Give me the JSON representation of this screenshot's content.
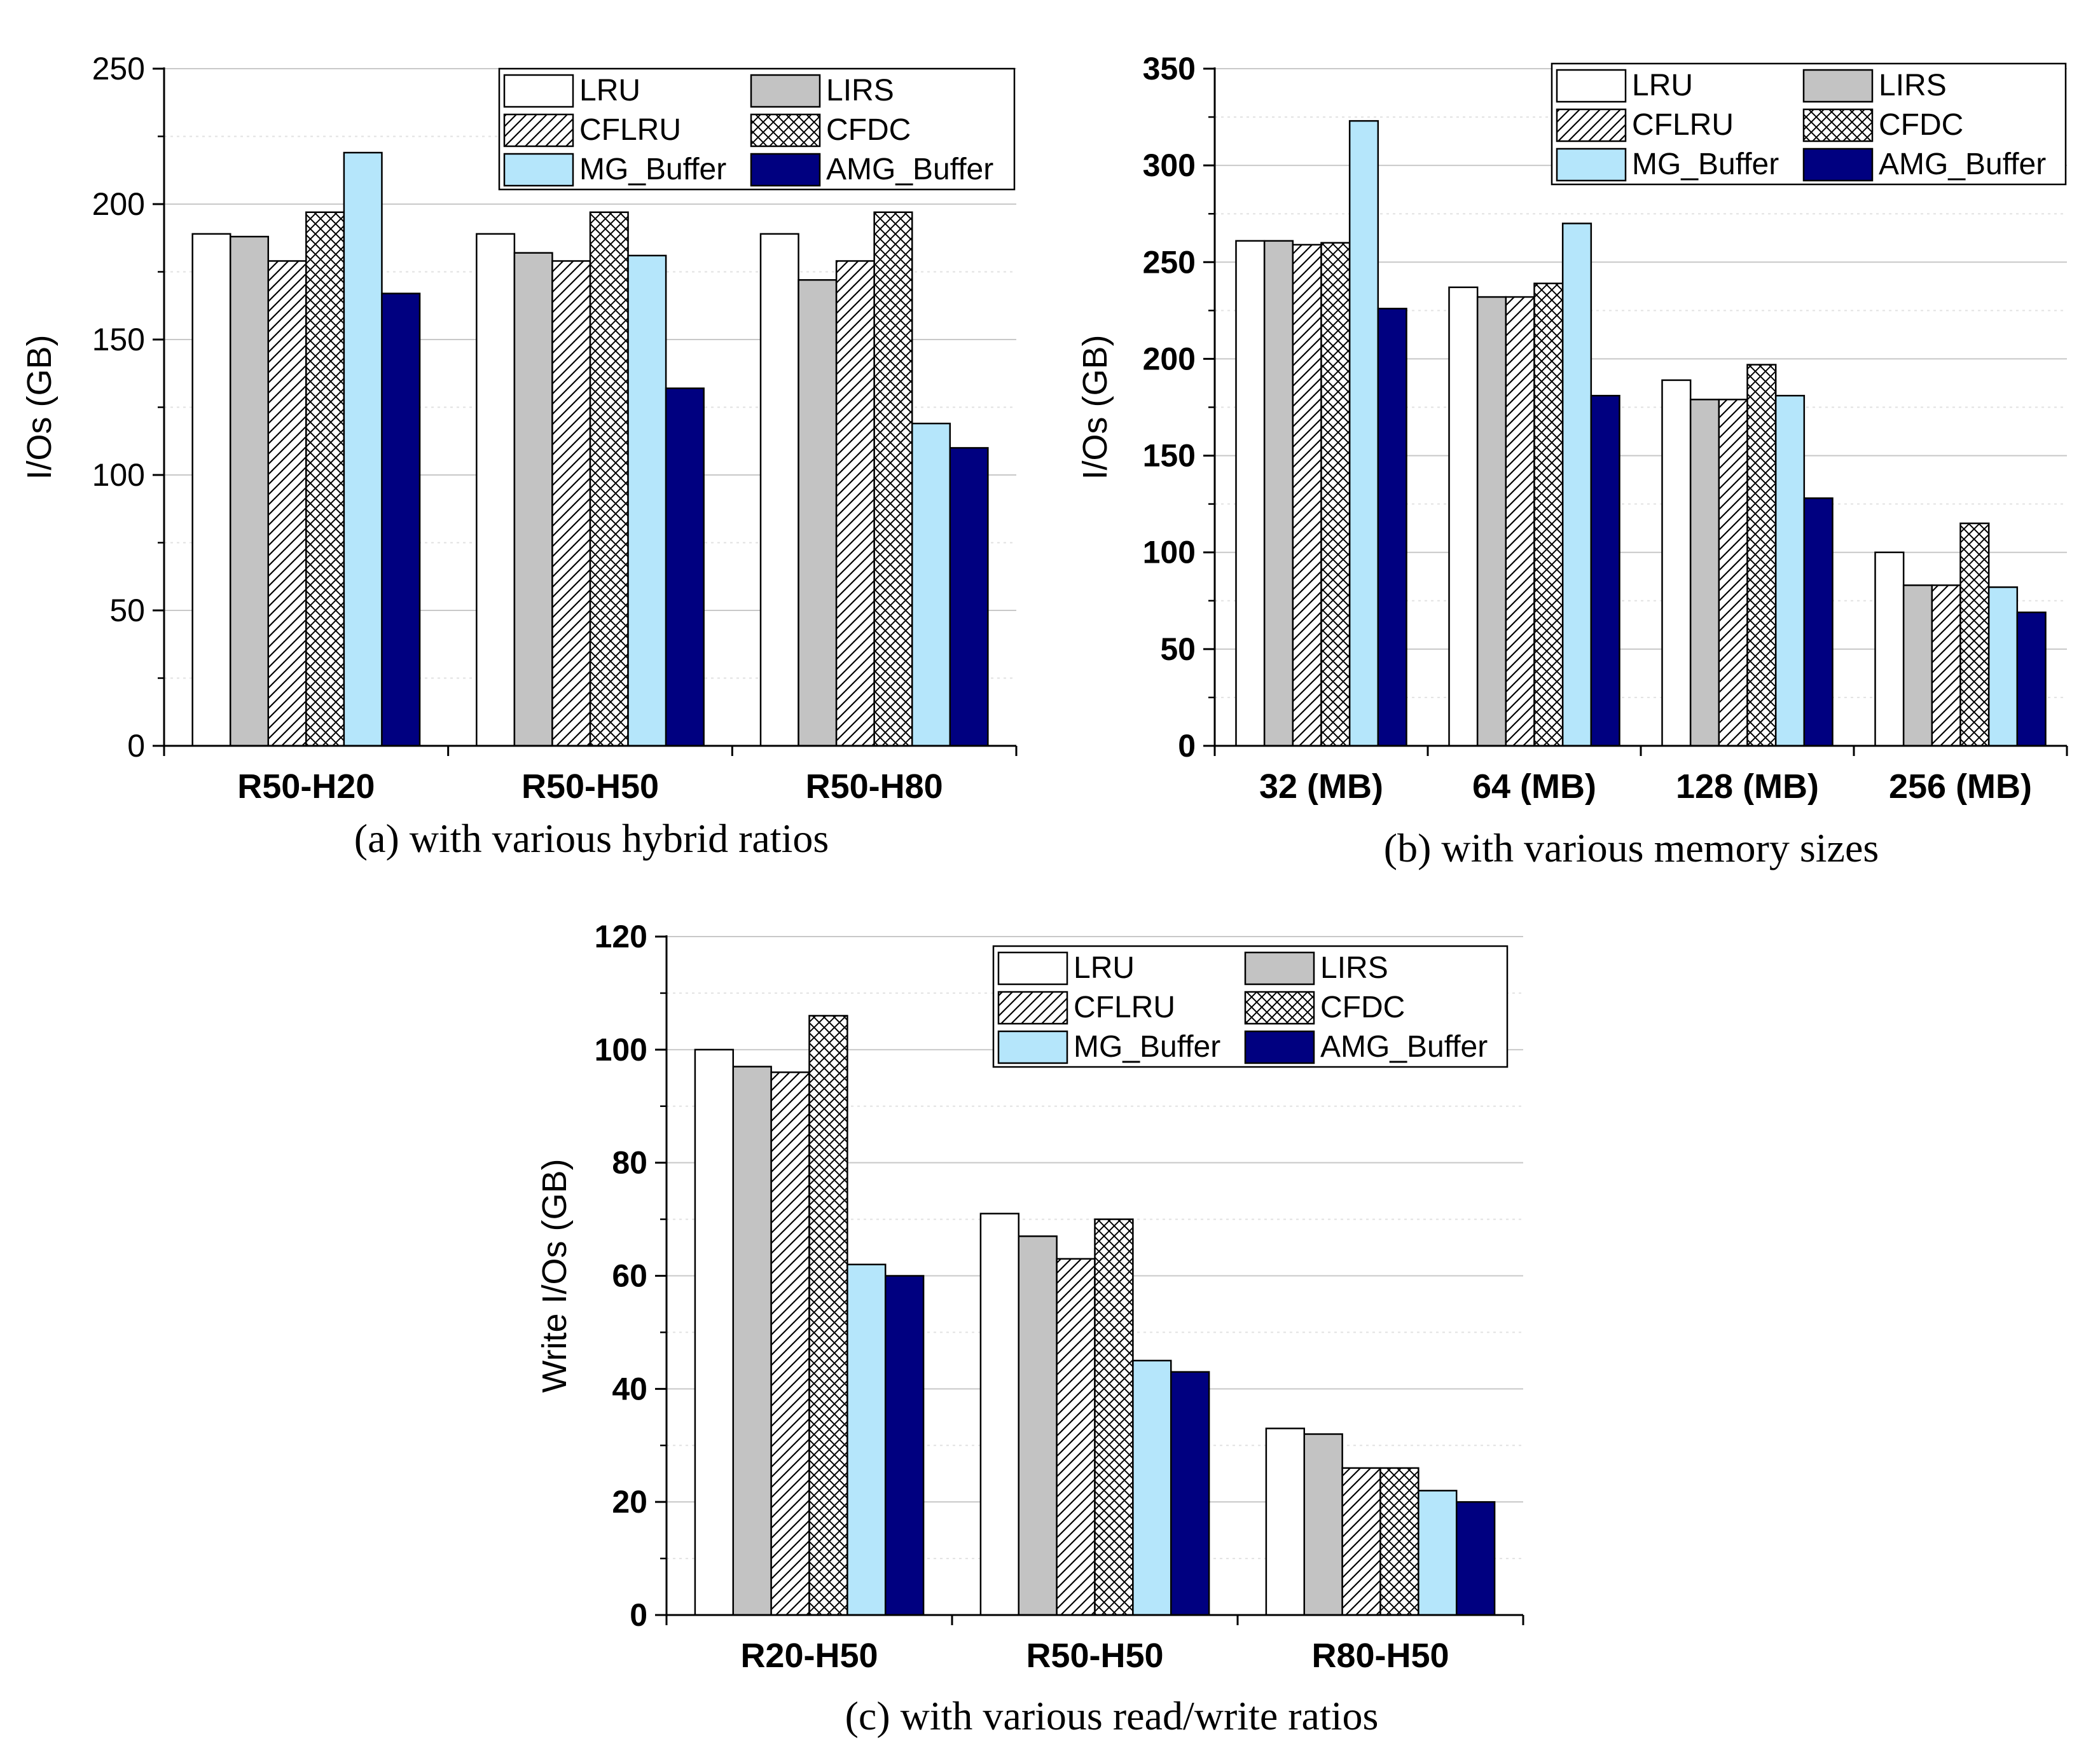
{
  "colors": {
    "LRU": "#ffffff",
    "LIRS": "#c3c3c3",
    "CFLRU": "#ffffff",
    "CFDC": "#ffffff",
    "MG_Buffer": "#b5e6fb",
    "AMG_Buffer": "#000080",
    "grid": "#c8c8c8",
    "minor_grid": "#e2e2e2"
  },
  "legend": [
    {
      "name": "LRU",
      "pattern": "solid"
    },
    {
      "name": "LIRS",
      "pattern": "solid"
    },
    {
      "name": "CFLRU",
      "pattern": "diagonal-hatch"
    },
    {
      "name": "CFDC",
      "pattern": "cross-hatch"
    },
    {
      "name": "MG_Buffer",
      "pattern": "solid"
    },
    {
      "name": "AMG_Buffer",
      "pattern": "solid"
    }
  ],
  "chart_data": [
    {
      "id": "a",
      "type": "bar",
      "caption": "(a) with various hybrid ratios",
      "ylabel": "I/Os (GB)",
      "ylim": [
        0,
        250
      ],
      "yticks": [
        0,
        50,
        100,
        150,
        200,
        250
      ],
      "tick_bold": false,
      "grid": true,
      "legend_position": "top-right",
      "categories": [
        "R50-H20",
        "R50-H50",
        "R50-H80"
      ],
      "series": [
        {
          "name": "LRU",
          "values": [
            189,
            189,
            189
          ]
        },
        {
          "name": "LIRS",
          "values": [
            188,
            182,
            172
          ]
        },
        {
          "name": "CFLRU",
          "values": [
            179,
            179,
            179
          ]
        },
        {
          "name": "CFDC",
          "values": [
            197,
            197,
            197
          ]
        },
        {
          "name": "MG_Buffer",
          "values": [
            219,
            181,
            119
          ]
        },
        {
          "name": "AMG_Buffer",
          "values": [
            167,
            132,
            110
          ]
        }
      ]
    },
    {
      "id": "b",
      "type": "bar",
      "caption": "(b) with various memory sizes",
      "ylabel": "I/Os (GB)",
      "ylim": [
        0,
        350
      ],
      "yticks": [
        0,
        50,
        100,
        150,
        200,
        250,
        300,
        350
      ],
      "tick_bold": true,
      "grid": true,
      "legend_position": "top-right",
      "categories": [
        "32 (MB)",
        "64 (MB)",
        "128 (MB)",
        "256 (MB)"
      ],
      "series": [
        {
          "name": "LRU",
          "values": [
            261,
            237,
            189,
            100
          ]
        },
        {
          "name": "LIRS",
          "values": [
            261,
            232,
            179,
            83
          ]
        },
        {
          "name": "CFLRU",
          "values": [
            259,
            232,
            179,
            83
          ]
        },
        {
          "name": "CFDC",
          "values": [
            260,
            239,
            197,
            115
          ]
        },
        {
          "name": "MG_Buffer",
          "values": [
            323,
            270,
            181,
            82
          ]
        },
        {
          "name": "AMG_Buffer",
          "values": [
            226,
            181,
            128,
            69
          ]
        }
      ]
    },
    {
      "id": "c",
      "type": "bar",
      "caption": "(c) with various read/write ratios",
      "ylabel": "Write I/Os (GB)",
      "ylim": [
        0,
        120
      ],
      "yticks": [
        0,
        20,
        40,
        60,
        80,
        100,
        120
      ],
      "tick_bold": true,
      "grid": true,
      "legend_position": "top-right",
      "categories": [
        "R20-H50",
        "R50-H50",
        "R80-H50"
      ],
      "series": [
        {
          "name": "LRU",
          "values": [
            100,
            71,
            33
          ]
        },
        {
          "name": "LIRS",
          "values": [
            97,
            67,
            32
          ]
        },
        {
          "name": "CFLRU",
          "values": [
            96,
            63,
            26
          ]
        },
        {
          "name": "CFDC",
          "values": [
            106,
            70,
            26
          ]
        },
        {
          "name": "MG_Buffer",
          "values": [
            62,
            45,
            22
          ]
        },
        {
          "name": "AMG_Buffer",
          "values": [
            60,
            43,
            20
          ]
        }
      ]
    }
  ]
}
